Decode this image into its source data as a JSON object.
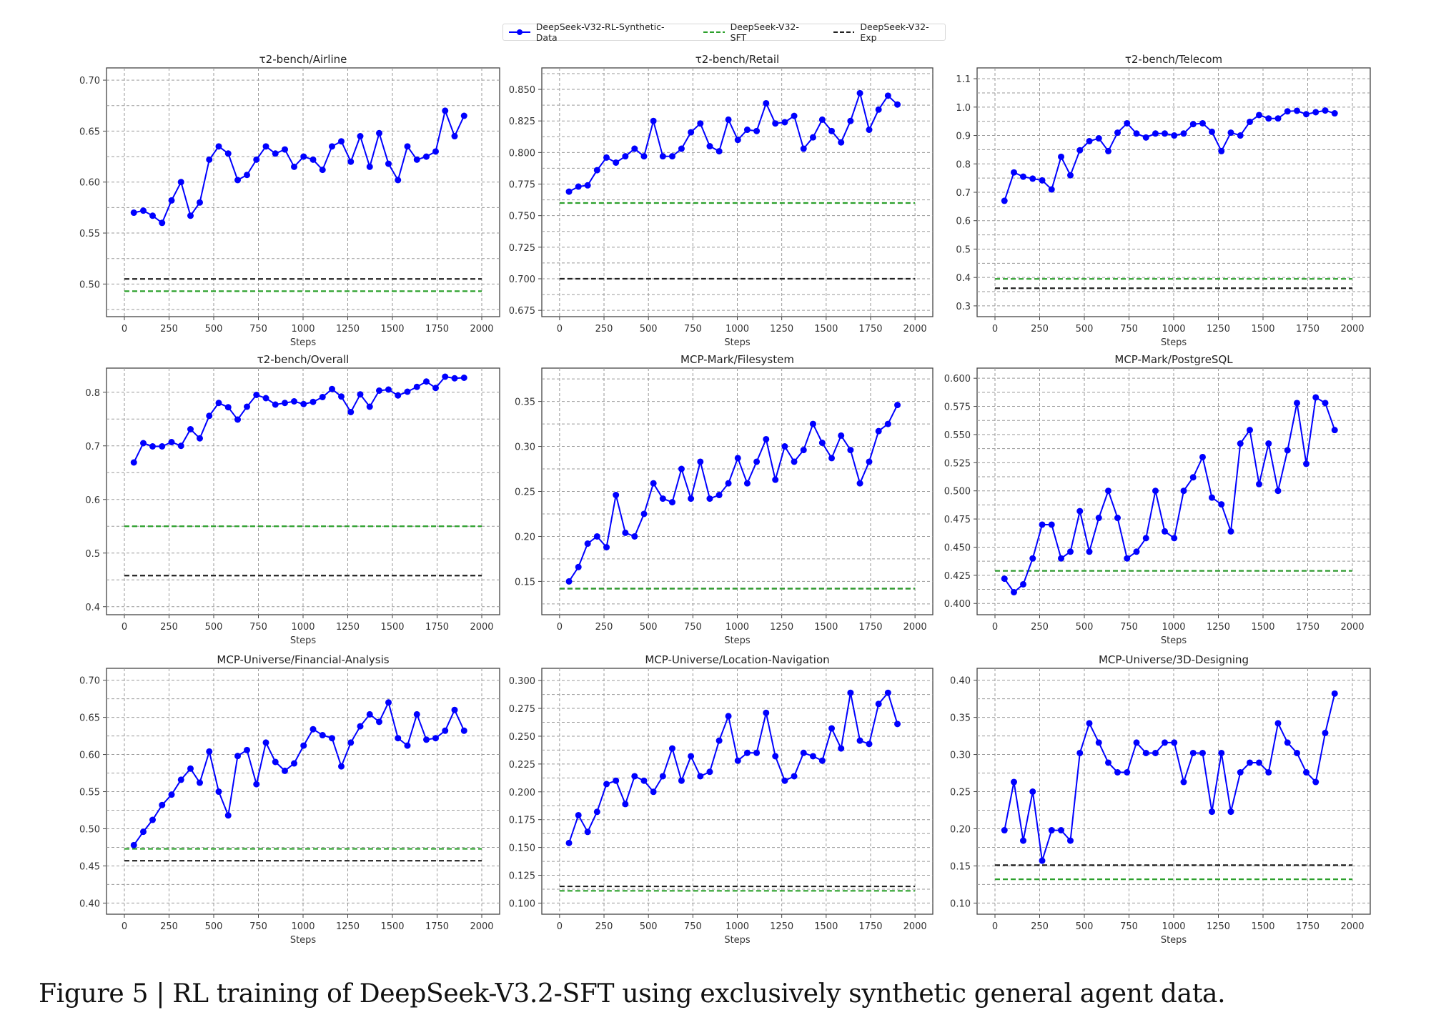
{
  "legend": [
    {
      "label": "DeepSeek-V32-RL-Synthetic-Data",
      "color": "#0000ff",
      "style": "solid-marker"
    },
    {
      "label": "DeepSeek-V32-SFT",
      "color": "#2ca02c",
      "style": "dashed"
    },
    {
      "label": "DeepSeek-V32-Exp",
      "color": "#222222",
      "style": "dashed"
    }
  ],
  "caption": "Figure 5 | RL training of DeepSeek-V3.2-SFT using exclusively synthetic general agent data.",
  "chart_data": [
    {
      "type": "line",
      "title": "τ2-bench/Airline",
      "xlabel": "Steps",
      "xlim": [
        -100,
        2100
      ],
      "xticks": [
        0,
        250,
        500,
        750,
        1000,
        1250,
        1500,
        1750,
        2000
      ],
      "ylim": [
        0.468,
        0.712
      ],
      "yticks": [
        0.5,
        0.55,
        0.6,
        0.65,
        0.7
      ],
      "ytick_labels": [
        "0.50",
        "0.55",
        "0.60",
        "0.65",
        "0.70"
      ],
      "grid": true,
      "x": [
        53,
        106,
        158,
        211,
        264,
        317,
        370,
        422,
        475,
        528,
        581,
        634,
        686,
        739,
        792,
        845,
        898,
        950,
        1003,
        1056,
        1109,
        1162,
        1214,
        1267,
        1320,
        1373,
        1426,
        1478,
        1531,
        1584,
        1637,
        1690,
        1742,
        1795,
        1848,
        1901
      ],
      "series": [
        {
          "name": "DeepSeek-V32-RL-Synthetic-Data",
          "values": [
            0.57,
            0.572,
            0.567,
            0.56,
            0.582,
            0.6,
            0.567,
            0.58,
            0.622,
            0.635,
            0.628,
            0.602,
            0.607,
            0.622,
            0.635,
            0.628,
            0.632,
            0.615,
            0.625,
            0.622,
            0.612,
            0.635,
            0.64,
            0.62,
            0.645,
            0.615,
            0.648,
            0.618,
            0.602,
            0.635,
            0.622,
            0.625,
            0.63,
            0.67,
            0.645,
            0.665
          ]
        }
      ],
      "baselines": {
        "DeepSeek-V32-SFT": 0.493,
        "DeepSeek-V32-Exp": 0.505
      }
    },
    {
      "type": "line",
      "title": "τ2-bench/Retail",
      "xlabel": "Steps",
      "xlim": [
        -100,
        2100
      ],
      "xticks": [
        0,
        250,
        500,
        750,
        1000,
        1250,
        1500,
        1750,
        2000
      ],
      "ylim": [
        0.67,
        0.867
      ],
      "yticks": [
        0.675,
        0.7,
        0.725,
        0.75,
        0.775,
        0.8,
        0.825,
        0.85
      ],
      "ytick_labels": [
        "0.675",
        "0.700",
        "0.725",
        "0.750",
        "0.775",
        "0.800",
        "0.825",
        "0.850"
      ],
      "grid": true,
      "x": [
        53,
        106,
        158,
        211,
        264,
        317,
        370,
        422,
        475,
        528,
        581,
        634,
        686,
        739,
        792,
        845,
        898,
        950,
        1003,
        1056,
        1109,
        1162,
        1214,
        1267,
        1320,
        1373,
        1426,
        1478,
        1531,
        1584,
        1637,
        1690,
        1742,
        1795,
        1848,
        1901
      ],
      "series": [
        {
          "name": "DeepSeek-V32-RL-Synthetic-Data",
          "values": [
            0.769,
            0.773,
            0.774,
            0.786,
            0.796,
            0.792,
            0.797,
            0.803,
            0.797,
            0.825,
            0.797,
            0.797,
            0.803,
            0.816,
            0.823,
            0.805,
            0.801,
            0.826,
            0.81,
            0.818,
            0.817,
            0.839,
            0.823,
            0.824,
            0.829,
            0.803,
            0.812,
            0.826,
            0.817,
            0.808,
            0.825,
            0.847,
            0.818,
            0.834,
            0.845,
            0.838
          ]
        }
      ],
      "baselines": {
        "DeepSeek-V32-SFT": 0.76,
        "DeepSeek-V32-Exp": 0.7
      }
    },
    {
      "type": "line",
      "title": "τ2-bench/Telecom",
      "xlabel": "Steps",
      "xlim": [
        -100,
        2100
      ],
      "xticks": [
        0,
        250,
        500,
        750,
        1000,
        1250,
        1500,
        1750,
        2000
      ],
      "ylim": [
        0.262,
        1.138
      ],
      "yticks": [
        0.3,
        0.4,
        0.5,
        0.6,
        0.7,
        0.8,
        0.9,
        1.0,
        1.1
      ],
      "ytick_labels": [
        "0.3",
        "0.4",
        "0.5",
        "0.6",
        "0.7",
        "0.8",
        "0.9",
        "1.0",
        "1.1"
      ],
      "grid": true,
      "x": [
        53,
        106,
        158,
        211,
        264,
        317,
        370,
        422,
        475,
        528,
        581,
        634,
        686,
        739,
        792,
        845,
        898,
        950,
        1003,
        1056,
        1109,
        1162,
        1214,
        1267,
        1320,
        1373,
        1426,
        1478,
        1531,
        1584,
        1637,
        1690,
        1742,
        1795,
        1848,
        1901
      ],
      "series": [
        {
          "name": "DeepSeek-V32-RL-Synthetic-Data",
          "values": [
            0.67,
            0.77,
            0.755,
            0.748,
            0.742,
            0.71,
            0.825,
            0.76,
            0.848,
            0.88,
            0.89,
            0.845,
            0.91,
            0.943,
            0.907,
            0.893,
            0.907,
            0.907,
            0.9,
            0.907,
            0.94,
            0.943,
            0.913,
            0.845,
            0.91,
            0.9,
            0.948,
            0.972,
            0.96,
            0.96,
            0.985,
            0.987,
            0.975,
            0.982,
            0.988,
            0.978
          ]
        }
      ],
      "baselines": {
        "DeepSeek-V32-SFT": 0.395,
        "DeepSeek-V32-Exp": 0.362
      }
    },
    {
      "type": "line",
      "title": "τ2-bench/Overall",
      "xlabel": "Steps",
      "xlim": [
        -100,
        2100
      ],
      "xticks": [
        0,
        250,
        500,
        750,
        1000,
        1250,
        1500,
        1750,
        2000
      ],
      "ylim": [
        0.385,
        0.845
      ],
      "yticks": [
        0.4,
        0.5,
        0.6,
        0.7,
        0.8
      ],
      "ytick_labels": [
        "0.4",
        "0.5",
        "0.6",
        "0.7",
        "0.8"
      ],
      "grid": true,
      "x": [
        53,
        106,
        158,
        211,
        264,
        317,
        370,
        422,
        475,
        528,
        581,
        634,
        686,
        739,
        792,
        845,
        898,
        950,
        1003,
        1056,
        1109,
        1162,
        1214,
        1267,
        1320,
        1373,
        1426,
        1478,
        1531,
        1584,
        1637,
        1690,
        1742,
        1795,
        1848,
        1901
      ],
      "series": [
        {
          "name": "DeepSeek-V32-RL-Synthetic-Data",
          "values": [
            0.669,
            0.705,
            0.699,
            0.699,
            0.707,
            0.7,
            0.731,
            0.714,
            0.756,
            0.78,
            0.772,
            0.749,
            0.773,
            0.795,
            0.789,
            0.777,
            0.78,
            0.783,
            0.778,
            0.782,
            0.791,
            0.806,
            0.792,
            0.763,
            0.796,
            0.773,
            0.803,
            0.805,
            0.794,
            0.801,
            0.81,
            0.82,
            0.808,
            0.829,
            0.826,
            0.827
          ]
        }
      ],
      "baselines": {
        "DeepSeek-V32-SFT": 0.55,
        "DeepSeek-V32-Exp": 0.458
      }
    },
    {
      "type": "line",
      "title": "MCP-Mark/Filesystem",
      "xlabel": "Steps",
      "xlim": [
        -100,
        2100
      ],
      "xticks": [
        0,
        250,
        500,
        750,
        1000,
        1250,
        1500,
        1750,
        2000
      ],
      "ylim": [
        0.113,
        0.387
      ],
      "yticks": [
        0.15,
        0.2,
        0.25,
        0.3,
        0.35
      ],
      "ytick_labels": [
        "0.15",
        "0.20",
        "0.25",
        "0.30",
        "0.35"
      ],
      "grid": true,
      "x": [
        53,
        106,
        158,
        211,
        264,
        317,
        370,
        422,
        475,
        528,
        581,
        634,
        686,
        739,
        792,
        845,
        898,
        950,
        1003,
        1056,
        1109,
        1162,
        1214,
        1267,
        1320,
        1373,
        1426,
        1478,
        1531,
        1584,
        1637,
        1690,
        1742,
        1795,
        1848,
        1901
      ],
      "series": [
        {
          "name": "DeepSeek-V32-RL-Synthetic-Data",
          "values": [
            0.15,
            0.166,
            0.192,
            0.2,
            0.188,
            0.246,
            0.204,
            0.2,
            0.225,
            0.259,
            0.242,
            0.238,
            0.275,
            0.242,
            0.283,
            0.242,
            0.246,
            0.259,
            0.287,
            0.259,
            0.283,
            0.308,
            0.263,
            0.3,
            0.283,
            0.296,
            0.325,
            0.304,
            0.287,
            0.312,
            0.296,
            0.259,
            0.283,
            0.317,
            0.325,
            0.346
          ]
        }
      ],
      "baselines": {
        "DeepSeek-V32-SFT": 0.142,
        "DeepSeek-V32-Exp": 0.142
      }
    },
    {
      "type": "line",
      "title": "MCP-Mark/PostgreSQL",
      "xlabel": "Steps",
      "xlim": [
        -100,
        2100
      ],
      "xticks": [
        0,
        250,
        500,
        750,
        1000,
        1250,
        1500,
        1750,
        2000
      ],
      "ylim": [
        0.39,
        0.609
      ],
      "yticks": [
        0.4,
        0.425,
        0.45,
        0.475,
        0.5,
        0.525,
        0.55,
        0.575,
        0.6
      ],
      "ytick_labels": [
        "0.400",
        "0.425",
        "0.450",
        "0.475",
        "0.500",
        "0.525",
        "0.550",
        "0.575",
        "0.600"
      ],
      "grid": true,
      "x": [
        53,
        106,
        158,
        211,
        264,
        317,
        370,
        422,
        475,
        528,
        581,
        634,
        686,
        739,
        792,
        845,
        898,
        950,
        1003,
        1056,
        1109,
        1162,
        1214,
        1267,
        1320,
        1373,
        1426,
        1478,
        1531,
        1584,
        1637,
        1690,
        1742,
        1795,
        1848,
        1901
      ],
      "series": [
        {
          "name": "DeepSeek-V32-RL-Synthetic-Data",
          "values": [
            0.422,
            0.41,
            0.417,
            0.44,
            0.47,
            0.47,
            0.44,
            0.446,
            0.482,
            0.446,
            0.476,
            0.5,
            0.476,
            0.44,
            0.446,
            0.458,
            0.5,
            0.464,
            0.458,
            0.5,
            0.512,
            0.53,
            0.494,
            0.488,
            0.464,
            0.542,
            0.554,
            0.506,
            0.542,
            0.5,
            0.536,
            0.578,
            0.524,
            0.583,
            0.578,
            0.554
          ]
        }
      ],
      "baselines": {
        "DeepSeek-V32-SFT": 0.429,
        "DeepSeek-V32-Exp": 0.429
      }
    },
    {
      "type": "line",
      "title": "MCP-Universe/Financial-Analysis",
      "xlabel": "Steps",
      "xlim": [
        -100,
        2100
      ],
      "xticks": [
        0,
        250,
        500,
        750,
        1000,
        1250,
        1500,
        1750,
        2000
      ],
      "ylim": [
        0.385,
        0.716
      ],
      "yticks": [
        0.4,
        0.45,
        0.5,
        0.55,
        0.6,
        0.65,
        0.7
      ],
      "ytick_labels": [
        "0.40",
        "0.45",
        "0.50",
        "0.55",
        "0.60",
        "0.65",
        "0.70"
      ],
      "grid": true,
      "x": [
        53,
        106,
        158,
        211,
        264,
        317,
        370,
        422,
        475,
        528,
        581,
        634,
        686,
        739,
        792,
        845,
        898,
        950,
        1003,
        1056,
        1109,
        1162,
        1214,
        1267,
        1320,
        1373,
        1426,
        1478,
        1531,
        1584,
        1637,
        1690,
        1742,
        1795,
        1848,
        1901
      ],
      "series": [
        {
          "name": "DeepSeek-V32-RL-Synthetic-Data",
          "values": [
            0.478,
            0.496,
            0.512,
            0.532,
            0.546,
            0.566,
            0.581,
            0.562,
            0.604,
            0.55,
            0.518,
            0.598,
            0.606,
            0.56,
            0.616,
            0.59,
            0.578,
            0.588,
            0.612,
            0.634,
            0.626,
            0.622,
            0.584,
            0.616,
            0.638,
            0.654,
            0.644,
            0.67,
            0.622,
            0.612,
            0.654,
            0.62,
            0.622,
            0.632,
            0.66,
            0.632
          ]
        }
      ],
      "baselines": {
        "DeepSeek-V32-SFT": 0.473,
        "DeepSeek-V32-Exp": 0.457
      }
    },
    {
      "type": "line",
      "title": "MCP-Universe/Location-Navigation",
      "xlabel": "Steps",
      "xlim": [
        -100,
        2100
      ],
      "xticks": [
        0,
        250,
        500,
        750,
        1000,
        1250,
        1500,
        1750,
        2000
      ],
      "ylim": [
        0.09,
        0.311
      ],
      "yticks": [
        0.1,
        0.125,
        0.15,
        0.175,
        0.2,
        0.225,
        0.25,
        0.275,
        0.3
      ],
      "ytick_labels": [
        "0.100",
        "0.125",
        "0.150",
        "0.175",
        "0.200",
        "0.225",
        "0.250",
        "0.275",
        "0.300"
      ],
      "grid": true,
      "x": [
        53,
        106,
        158,
        211,
        264,
        317,
        370,
        422,
        475,
        528,
        581,
        634,
        686,
        739,
        792,
        845,
        898,
        950,
        1003,
        1056,
        1109,
        1162,
        1214,
        1267,
        1320,
        1373,
        1426,
        1478,
        1531,
        1584,
        1637,
        1690,
        1742,
        1795,
        1848,
        1901
      ],
      "series": [
        {
          "name": "DeepSeek-V32-RL-Synthetic-Data",
          "values": [
            0.154,
            0.179,
            0.164,
            0.182,
            0.207,
            0.21,
            0.189,
            0.214,
            0.21,
            0.2,
            0.214,
            0.239,
            0.21,
            0.232,
            0.214,
            0.218,
            0.246,
            0.268,
            0.228,
            0.235,
            0.235,
            0.271,
            0.232,
            0.21,
            0.214,
            0.235,
            0.232,
            0.228,
            0.257,
            0.239,
            0.289,
            0.246,
            0.243,
            0.279,
            0.289,
            0.261
          ]
        }
      ],
      "baselines": {
        "DeepSeek-V32-SFT": 0.111,
        "DeepSeek-V32-Exp": 0.115
      }
    },
    {
      "type": "line",
      "title": "MCP-Universe/3D-Designing",
      "xlabel": "Steps",
      "xlim": [
        -100,
        2100
      ],
      "xticks": [
        0,
        250,
        500,
        750,
        1000,
        1250,
        1500,
        1750,
        2000
      ],
      "ylim": [
        0.085,
        0.416
      ],
      "yticks": [
        0.1,
        0.15,
        0.2,
        0.25,
        0.3,
        0.35,
        0.4
      ],
      "ytick_labels": [
        "0.10",
        "0.15",
        "0.20",
        "0.25",
        "0.30",
        "0.35",
        "0.40"
      ],
      "grid": true,
      "x": [
        53,
        106,
        158,
        211,
        264,
        317,
        370,
        422,
        475,
        528,
        581,
        634,
        686,
        739,
        792,
        845,
        898,
        950,
        1003,
        1056,
        1109,
        1162,
        1214,
        1267,
        1320,
        1373,
        1426,
        1478,
        1531,
        1584,
        1637,
        1690,
        1742,
        1795,
        1848,
        1901
      ],
      "series": [
        {
          "name": "DeepSeek-V32-RL-Synthetic-Data",
          "values": [
            0.198,
            0.263,
            0.184,
            0.25,
            0.157,
            0.198,
            0.198,
            0.184,
            0.302,
            0.342,
            0.316,
            0.289,
            0.276,
            0.276,
            0.316,
            0.302,
            0.302,
            0.316,
            0.316,
            0.263,
            0.302,
            0.302,
            0.223,
            0.302,
            0.223,
            0.276,
            0.289,
            0.289,
            0.276,
            0.342,
            0.316,
            0.302,
            0.276,
            0.263,
            0.329,
            0.382
          ]
        }
      ],
      "baselines": {
        "DeepSeek-V32-SFT": 0.132,
        "DeepSeek-V32-Exp": 0.151
      }
    }
  ]
}
